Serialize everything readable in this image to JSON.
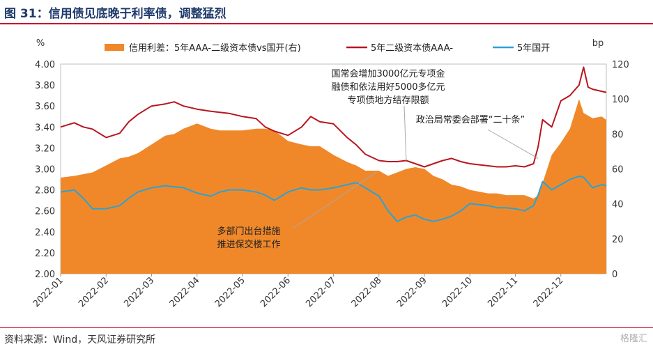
{
  "title": "图 31：信用债见底晚于利率债，调整猛烈",
  "source": "资料来源：Wind，天风证券研究所",
  "watermark": "格隆汇",
  "colors": {
    "title": "#1f3a6b",
    "rule": "#c8102e",
    "spread_fill": "#f0882a",
    "credit_line": "#b8161e",
    "treasury_line": "#2aa3d4",
    "annotation_line": "#a8a8a8"
  },
  "chart_data": {
    "type": "area+line",
    "left_axis_unit": "%",
    "right_axis_unit": "bp",
    "left_ylim": [
      2.0,
      4.0
    ],
    "left_ticks": [
      "4.00",
      "3.80",
      "3.60",
      "3.40",
      "3.20",
      "3.00",
      "2.80",
      "2.60",
      "2.40",
      "2.20",
      "2.00"
    ],
    "right_ylim": [
      0,
      120
    ],
    "right_ticks": [
      "120",
      "100",
      "80",
      "60",
      "40",
      "20",
      "0"
    ],
    "x_ticks": [
      "2022-01",
      "2022-02",
      "2022-03",
      "2022-04",
      "2022-05",
      "2022-06",
      "2022-07",
      "2022-08",
      "2022-09",
      "2022-10",
      "2022-11",
      "2022-12"
    ],
    "x_range": [
      0,
      12
    ],
    "legend_position": "top",
    "series": [
      {
        "name": "信用利差：5年AAA-二级资本债vs国开(右)",
        "type": "area",
        "axis": "right",
        "x": [
          0,
          0.3,
          0.5,
          0.7,
          1.0,
          1.3,
          1.5,
          1.7,
          2.0,
          2.3,
          2.5,
          2.7,
          3.0,
          3.3,
          3.5,
          3.7,
          4.0,
          4.3,
          4.5,
          4.7,
          5.0,
          5.3,
          5.5,
          5.7,
          6.0,
          6.3,
          6.5,
          6.7,
          7.0,
          7.2,
          7.4,
          7.6,
          7.8,
          8.0,
          8.2,
          8.4,
          8.6,
          8.8,
          9.0,
          9.2,
          9.4,
          9.6,
          9.8,
          10.0,
          10.2,
          10.4,
          10.5,
          10.6,
          10.8,
          11.0,
          11.2,
          11.4,
          11.5,
          11.7,
          11.9,
          12.0
        ],
        "values": [
          55,
          56,
          57,
          58,
          62,
          66,
          67,
          69,
          74,
          79,
          80,
          83,
          86,
          83,
          82,
          82,
          82,
          83,
          83,
          82,
          76,
          74,
          73,
          73,
          68,
          64,
          62,
          59,
          59,
          56,
          58,
          60,
          61,
          60,
          56,
          54,
          51,
          50,
          48,
          47,
          46,
          46,
          45,
          45,
          45,
          43,
          45,
          52,
          68,
          75,
          83,
          100,
          92,
          89,
          90,
          88
        ]
      },
      {
        "name": "5年二级资本债AAA-",
        "type": "line",
        "axis": "left",
        "x": [
          0,
          0.3,
          0.5,
          0.7,
          1.0,
          1.3,
          1.5,
          1.7,
          2.0,
          2.3,
          2.5,
          2.7,
          3.0,
          3.3,
          3.5,
          3.7,
          4.0,
          4.3,
          4.5,
          4.7,
          5.0,
          5.3,
          5.5,
          5.7,
          6.0,
          6.3,
          6.5,
          6.7,
          7.0,
          7.2,
          7.4,
          7.6,
          7.8,
          8.0,
          8.2,
          8.4,
          8.6,
          8.8,
          9.0,
          9.2,
          9.4,
          9.6,
          9.8,
          10.0,
          10.2,
          10.4,
          10.5,
          10.6,
          10.8,
          11.0,
          11.2,
          11.4,
          11.5,
          11.6,
          11.7,
          11.9,
          12.0
        ],
        "values": [
          3.4,
          3.44,
          3.4,
          3.38,
          3.3,
          3.34,
          3.45,
          3.52,
          3.6,
          3.62,
          3.64,
          3.6,
          3.57,
          3.55,
          3.54,
          3.53,
          3.5,
          3.48,
          3.4,
          3.36,
          3.32,
          3.4,
          3.5,
          3.45,
          3.43,
          3.3,
          3.23,
          3.14,
          3.08,
          3.07,
          3.07,
          3.08,
          3.05,
          3.02,
          3.05,
          3.08,
          3.1,
          3.07,
          3.05,
          3.04,
          3.03,
          3.02,
          3.02,
          3.03,
          3.02,
          3.05,
          3.21,
          3.47,
          3.4,
          3.65,
          3.7,
          3.8,
          3.97,
          3.78,
          3.76,
          3.74,
          3.73
        ]
      },
      {
        "name": "5年国开",
        "type": "line",
        "axis": "left",
        "x": [
          0,
          0.3,
          0.5,
          0.7,
          1.0,
          1.3,
          1.5,
          1.7,
          2.0,
          2.3,
          2.5,
          2.7,
          3.0,
          3.3,
          3.5,
          3.7,
          4.0,
          4.3,
          4.5,
          4.7,
          5.0,
          5.3,
          5.5,
          5.7,
          6.0,
          6.3,
          6.5,
          6.7,
          7.0,
          7.2,
          7.4,
          7.6,
          7.8,
          8.0,
          8.2,
          8.4,
          8.6,
          8.8,
          9.0,
          9.2,
          9.4,
          9.6,
          9.8,
          10.0,
          10.2,
          10.4,
          10.5,
          10.6,
          10.8,
          11.0,
          11.2,
          11.4,
          11.5,
          11.7,
          11.9,
          12.0
        ],
        "values": [
          2.78,
          2.8,
          2.72,
          2.62,
          2.62,
          2.65,
          2.72,
          2.78,
          2.82,
          2.84,
          2.83,
          2.82,
          2.77,
          2.74,
          2.78,
          2.8,
          2.8,
          2.78,
          2.75,
          2.7,
          2.78,
          2.82,
          2.8,
          2.8,
          2.82,
          2.85,
          2.87,
          2.82,
          2.74,
          2.6,
          2.5,
          2.54,
          2.56,
          2.52,
          2.5,
          2.52,
          2.55,
          2.6,
          2.67,
          2.66,
          2.65,
          2.63,
          2.63,
          2.62,
          2.6,
          2.65,
          2.75,
          2.88,
          2.8,
          2.85,
          2.9,
          2.93,
          2.92,
          2.82,
          2.85,
          2.84
        ]
      }
    ],
    "annotations": [
      {
        "lines": [
          "国常会增加3000亿元专项金",
          "融债和依法用好5000多亿元",
          "专项债地方结存限额"
        ],
        "point_x": 7.6,
        "point_axis": "left",
        "point_y": 3.08
      },
      {
        "lines": [
          "政治局常委会部署“二十条”"
        ],
        "point_x": 10.5,
        "point_axis": "left",
        "point_y": 3.1
      },
      {
        "lines": [
          "多部门出台措施",
          "推进保交楼工作"
        ],
        "point_x": 6.95,
        "point_axis": "left",
        "point_y": 2.97
      }
    ]
  }
}
